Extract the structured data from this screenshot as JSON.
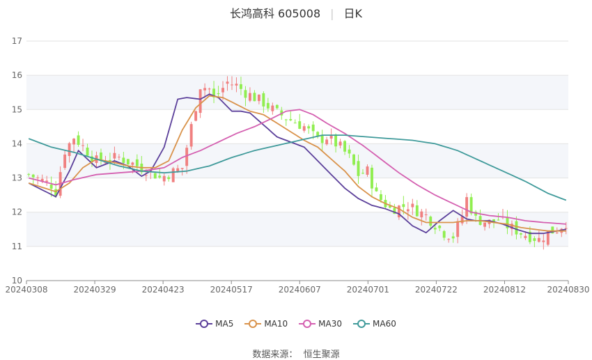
{
  "header": {
    "title": "长鸿高科 605008",
    "period": "日K"
  },
  "source": {
    "label": "数据来源：",
    "provider": "恒生聚源"
  },
  "colors": {
    "up": "#f08080",
    "down": "#90ee50",
    "ma5": "#5b3f9a",
    "ma10": "#d9924a",
    "ma30": "#d45fb0",
    "ma60": "#3f9a9a"
  },
  "chart_data": {
    "type": "candlestick",
    "title": "长鸿高科 605008",
    "ylim": [
      10,
      17
    ],
    "yticks": [
      10,
      11,
      12,
      13,
      14,
      15,
      16,
      17
    ],
    "x_tick_labels": [
      "20240308",
      "20240329",
      "20240423",
      "20240517",
      "20240607",
      "20240701",
      "20240722",
      "20240812",
      "20240830"
    ],
    "x_tick_index": [
      0,
      15,
      30,
      45,
      60,
      75,
      90,
      105,
      119
    ],
    "n_bars": 120,
    "grid": true,
    "legend_position": "bottom",
    "ohlc_anchors": {
      "note_close_path_index": [
        0,
        5,
        6,
        8,
        10,
        15,
        20,
        25,
        27,
        29,
        34,
        38,
        40,
        41,
        44,
        46,
        48,
        52,
        55,
        58,
        61,
        64,
        66,
        69,
        71,
        73,
        75,
        77,
        80,
        84,
        88,
        92,
        94,
        96,
        97,
        99,
        102,
        104,
        106,
        109,
        111,
        113,
        115,
        117,
        119
      ],
      "note_close_path_value": [
        13.1,
        12.8,
        12.6,
        13.8,
        14.2,
        13.5,
        13.6,
        13.3,
        13.2,
        13.0,
        13.3,
        15.7,
        15.6,
        15.3,
        15.8,
        15.7,
        15.5,
        15.2,
        14.9,
        14.7,
        14.5,
        14.1,
        14.2,
        13.9,
        13.6,
        13.1,
        13.2,
        12.5,
        12.1,
        12.2,
        11.9,
        11.4,
        11.3,
        11.9,
        12.4,
        11.8,
        11.7,
        11.8,
        11.6,
        11.4,
        11.3,
        11.2,
        11.4,
        11.5,
        11.7
      ]
    },
    "series": [
      {
        "name": "MA5",
        "x_index": [
          0,
          6,
          9,
          11,
          15,
          19,
          22,
          25,
          27,
          30,
          33,
          35,
          38,
          40,
          42,
          45,
          47,
          49,
          52,
          55,
          58,
          61,
          64,
          67,
          70,
          73,
          76,
          79,
          82,
          85,
          88,
          91,
          94,
          97,
          99,
          102,
          105,
          108,
          111,
          114,
          117,
          119
        ],
        "values": [
          12.85,
          12.45,
          13.2,
          13.8,
          13.3,
          13.5,
          13.35,
          13.05,
          13.2,
          13.9,
          15.3,
          15.35,
          15.3,
          15.45,
          15.35,
          14.95,
          14.95,
          14.9,
          14.55,
          14.2,
          14.05,
          13.9,
          13.5,
          13.1,
          12.7,
          12.4,
          12.2,
          12.1,
          11.95,
          11.6,
          11.4,
          11.75,
          12.05,
          11.8,
          11.75,
          11.75,
          11.65,
          11.5,
          11.38,
          11.38,
          11.45,
          11.5
        ]
      },
      {
        "name": "MA10",
        "x_index": [
          0,
          6,
          9,
          12,
          15,
          19,
          22,
          25,
          28,
          31,
          34,
          37,
          40,
          43,
          46,
          49,
          52,
          55,
          58,
          61,
          64,
          67,
          70,
          73,
          76,
          79,
          82,
          85,
          88,
          91,
          94,
          97,
          100,
          103,
          106,
          109,
          112,
          115,
          119
        ],
        "values": [
          12.85,
          12.6,
          12.85,
          13.3,
          13.55,
          13.45,
          13.35,
          13.3,
          13.3,
          13.5,
          14.4,
          15.05,
          15.4,
          15.35,
          15.15,
          14.95,
          14.85,
          14.6,
          14.35,
          14.1,
          13.9,
          13.55,
          13.2,
          12.75,
          12.45,
          12.25,
          12.1,
          11.85,
          11.7,
          11.7,
          11.7,
          11.75,
          11.75,
          11.7,
          11.65,
          11.55,
          11.5,
          11.45,
          11.45
        ]
      },
      {
        "name": "MA30",
        "x_index": [
          0,
          6,
          10,
          15,
          20,
          25,
          30,
          34,
          38,
          42,
          46,
          50,
          54,
          57,
          60,
          63,
          66,
          70,
          74,
          78,
          82,
          86,
          90,
          94,
          98,
          102,
          106,
          110,
          114,
          119
        ],
        "values": [
          13.0,
          12.8,
          12.95,
          13.1,
          13.15,
          13.2,
          13.3,
          13.6,
          13.8,
          14.05,
          14.3,
          14.5,
          14.75,
          14.95,
          15.0,
          14.85,
          14.6,
          14.3,
          13.95,
          13.55,
          13.15,
          12.8,
          12.5,
          12.25,
          12.0,
          11.9,
          11.85,
          11.75,
          11.7,
          11.65
        ]
      },
      {
        "name": "MA60",
        "x_index": [
          0,
          5,
          10,
          15,
          20,
          25,
          30,
          35,
          40,
          45,
          50,
          55,
          60,
          65,
          70,
          75,
          80,
          85,
          90,
          95,
          100,
          105,
          110,
          115,
          119
        ],
        "values": [
          14.15,
          13.9,
          13.75,
          13.55,
          13.35,
          13.2,
          13.15,
          13.2,
          13.35,
          13.6,
          13.8,
          13.95,
          14.1,
          14.25,
          14.25,
          14.2,
          14.15,
          14.1,
          14.0,
          13.8,
          13.5,
          13.2,
          12.9,
          12.55,
          12.35
        ]
      }
    ]
  }
}
